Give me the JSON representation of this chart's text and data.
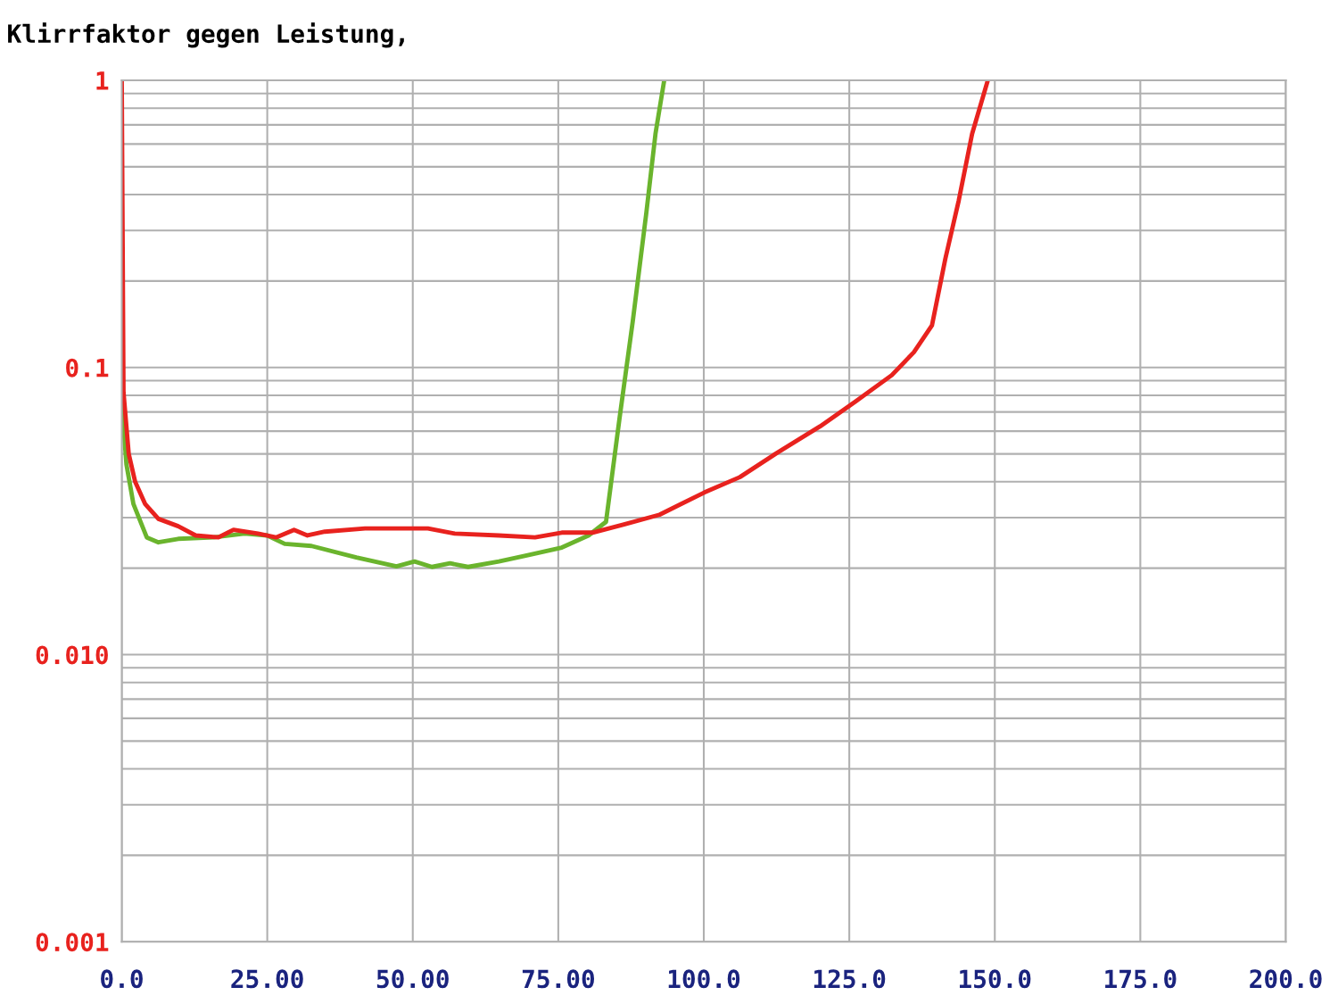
{
  "chart_data": {
    "type": "line",
    "title": "Klirrfaktor gegen Leistung,",
    "log": "y",
    "grid": true,
    "legend": false,
    "marker": "none",
    "line_style": "solid",
    "xlim": [
      0,
      200
    ],
    "xticks": [
      {
        "value": 0,
        "label": "0.0"
      },
      {
        "value": 25,
        "label": "25.00"
      },
      {
        "value": 50,
        "label": "50.00"
      },
      {
        "value": 75,
        "label": "75.00"
      },
      {
        "value": 100,
        "label": "100.0"
      },
      {
        "value": 125,
        "label": "125.0"
      },
      {
        "value": 150,
        "label": "150.0"
      },
      {
        "value": 175,
        "label": "175.0"
      },
      {
        "value": 200,
        "label": "200.0"
      }
    ],
    "ylim": [
      0.001,
      1
    ],
    "yticks": [
      0.001,
      {
        "value": 0.002,
        "label": null
      },
      {
        "value": 0.003,
        "label": null
      },
      {
        "value": 0.004,
        "label": null
      },
      {
        "value": 0.005,
        "label": null
      },
      {
        "value": 0.006,
        "label": null
      },
      {
        "value": 0.007,
        "label": null
      },
      {
        "value": 0.008,
        "label": null
      },
      {
        "value": 0.009,
        "label": null
      },
      {
        "value": 0.01,
        "label": "0.010"
      },
      {
        "value": 0.02,
        "label": null
      },
      {
        "value": 0.03,
        "label": null
      },
      {
        "value": 0.04,
        "label": null
      },
      {
        "value": 0.05,
        "label": null
      },
      {
        "value": 0.06,
        "label": null
      },
      {
        "value": 0.07,
        "label": null
      },
      {
        "value": 0.08,
        "label": null
      },
      {
        "value": 0.09,
        "label": null
      },
      0.1,
      {
        "value": 0.2,
        "label": null
      },
      {
        "value": 0.3,
        "label": null
      },
      {
        "value": 0.4,
        "label": null
      },
      {
        "value": 0.5,
        "label": null
      },
      {
        "value": 0.6,
        "label": null
      },
      {
        "value": 0.7,
        "label": null
      },
      {
        "value": 0.8,
        "label": null
      },
      {
        "value": 0.9,
        "label": null
      },
      1
    ],
    "series": [
      {
        "color": "#6ab42d",
        "x": [
          0,
          0.8,
          2.0,
          4.3,
          6.3,
          9.7,
          15.8,
          21.1,
          25.0,
          28.0,
          32.6,
          40.3,
          47.2,
          50.3,
          53.3,
          56.4,
          59.5,
          64.8,
          69.4,
          75.6,
          80.2,
          83.2,
          85.5,
          87.8,
          90.1,
          91.7,
          93.2
        ],
        "values": [
          0.076,
          0.046,
          0.0335,
          0.0256,
          0.0246,
          0.0253,
          0.0256,
          0.0264,
          0.026,
          0.0243,
          0.0239,
          0.0218,
          0.0203,
          0.0211,
          0.0202,
          0.0208,
          0.0202,
          0.0211,
          0.0221,
          0.0236,
          0.026,
          0.029,
          0.066,
          0.145,
          0.342,
          0.651,
          1.0
        ]
      },
      {
        "color": "#e8221e",
        "x": [
          0,
          0.3,
          1.2,
          2.3,
          4.0,
          6.3,
          9.7,
          12.7,
          16.6,
          19.2,
          23.4,
          26.5,
          29.6,
          31.9,
          34.9,
          41.8,
          52.6,
          57.2,
          64.8,
          71.0,
          75.6,
          80.9,
          86.3,
          92.4,
          100.1,
          106.2,
          112.3,
          120.0,
          126.1,
          132.3,
          136.1,
          139.2,
          141.5,
          143.8,
          146.1,
          148.8
        ],
        "values": [
          1.0,
          0.082,
          0.05,
          0.04,
          0.0335,
          0.0297,
          0.028,
          0.026,
          0.0256,
          0.0272,
          0.0264,
          0.0256,
          0.0272,
          0.026,
          0.0268,
          0.0275,
          0.0275,
          0.0264,
          0.026,
          0.0256,
          0.0266,
          0.0266,
          0.0284,
          0.0307,
          0.0367,
          0.0415,
          0.05,
          0.0624,
          0.0762,
          0.094,
          0.113,
          0.14,
          0.239,
          0.381,
          0.651,
          1.0
        ]
      }
    ]
  }
}
